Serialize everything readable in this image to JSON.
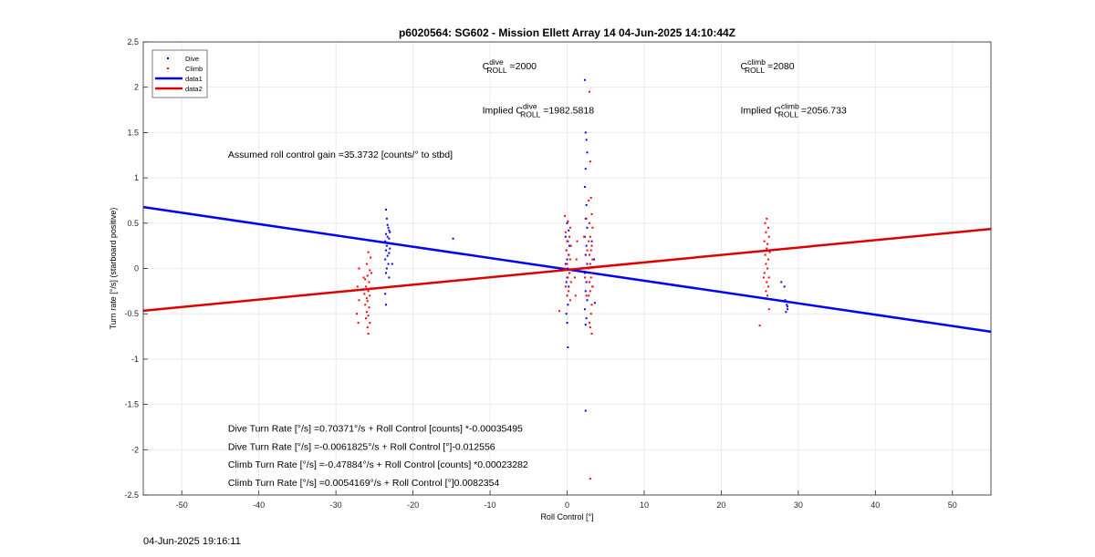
{
  "chart_data": {
    "type": "scatter",
    "title": "p6020564: SG602 - Mission Ellett Array 14 04-Jun-2025 14:10:44Z",
    "xlabel": "Roll Control [°]",
    "ylabel": "Turn rate [°/s] (starboard positive)",
    "xlim": [
      -55,
      55
    ],
    "ylim": [
      -2.5,
      2.5
    ],
    "xticks": [
      -50,
      -40,
      -30,
      -20,
      -10,
      0,
      10,
      20,
      30,
      40,
      50
    ],
    "yticks": [
      -2.5,
      -2,
      -1.5,
      -1,
      -0.5,
      0,
      0.5,
      1,
      1.5,
      2,
      2.5
    ],
    "grid": true,
    "legend_position": "top-left",
    "series": [
      {
        "name": "Dive",
        "kind": "points",
        "color": "#0000ff",
        "points": [
          [
            -23.5,
            0.65
          ],
          [
            -23.4,
            0.55
          ],
          [
            -23.3,
            0.48
          ],
          [
            -23.2,
            0.45
          ],
          [
            -23.1,
            0.42
          ],
          [
            -23.0,
            0.4
          ],
          [
            -23.5,
            0.38
          ],
          [
            -23.3,
            0.35
          ],
          [
            -23.1,
            0.33
          ],
          [
            -23.6,
            0.3
          ],
          [
            -23.2,
            0.28
          ],
          [
            -23.4,
            0.25
          ],
          [
            -23.0,
            0.22
          ],
          [
            -23.5,
            0.2
          ],
          [
            -23.1,
            0.17
          ],
          [
            -23.3,
            0.14
          ],
          [
            -23.6,
            0.1
          ],
          [
            -23.2,
            0.05
          ],
          [
            -22.7,
            0.05
          ],
          [
            -23.4,
            0.0
          ],
          [
            -23.5,
            -0.05
          ],
          [
            -23.1,
            -0.1
          ],
          [
            -23.6,
            -0.28
          ],
          [
            -23.5,
            -0.4
          ],
          [
            -14.8,
            0.33
          ],
          [
            0.0,
            0.5
          ],
          [
            0.2,
            0.42
          ],
          [
            -0.2,
            0.35
          ],
          [
            0.1,
            0.3
          ],
          [
            0.3,
            0.25
          ],
          [
            -0.1,
            0.2
          ],
          [
            0.2,
            0.15
          ],
          [
            0.0,
            0.1
          ],
          [
            -0.2,
            0.05
          ],
          [
            0.1,
            0.0
          ],
          [
            0.3,
            -0.05
          ],
          [
            0.0,
            -0.1
          ],
          [
            -0.1,
            -0.15
          ],
          [
            0.2,
            -0.2
          ],
          [
            0.0,
            -0.3
          ],
          [
            0.1,
            -0.4
          ],
          [
            -0.1,
            -0.5
          ],
          [
            0.0,
            -0.6
          ],
          [
            0.1,
            -0.87
          ],
          [
            2.3,
            2.08
          ],
          [
            2.4,
            1.5
          ],
          [
            2.5,
            1.42
          ],
          [
            2.6,
            1.28
          ],
          [
            2.4,
            1.1
          ],
          [
            2.3,
            0.9
          ],
          [
            2.5,
            0.7
          ],
          [
            2.4,
            0.55
          ],
          [
            2.6,
            0.45
          ],
          [
            2.3,
            0.35
          ],
          [
            2.5,
            0.25
          ],
          [
            2.4,
            0.15
          ],
          [
            2.6,
            0.05
          ],
          [
            2.3,
            -0.05
          ],
          [
            2.5,
            -0.15
          ],
          [
            2.4,
            -0.25
          ],
          [
            2.6,
            -0.35
          ],
          [
            2.3,
            -0.45
          ],
          [
            2.5,
            -0.55
          ],
          [
            2.4,
            -0.62
          ],
          [
            2.4,
            -1.57
          ],
          [
            3.2,
            0.3
          ],
          [
            3.5,
            0.1
          ],
          [
            3.3,
            -0.2
          ],
          [
            3.6,
            -0.38
          ],
          [
            27.8,
            -0.15
          ],
          [
            28.3,
            -0.35
          ],
          [
            28.5,
            -0.4
          ],
          [
            28.6,
            -0.45
          ],
          [
            28.4,
            -0.48
          ],
          [
            28.2,
            -0.2
          ],
          [
            28.6,
            -0.42
          ]
        ]
      },
      {
        "name": "Climb",
        "kind": "points",
        "color": "#ff0000",
        "points": [
          [
            -25.8,
            0.18
          ],
          [
            -25.5,
            0.12
          ],
          [
            -26.0,
            0.05
          ],
          [
            -25.6,
            -0.02
          ],
          [
            -25.9,
            -0.08
          ],
          [
            -26.2,
            -0.12
          ],
          [
            -25.7,
            -0.15
          ],
          [
            -26.1,
            -0.2
          ],
          [
            -25.5,
            -0.22
          ],
          [
            -25.8,
            -0.25
          ],
          [
            -26.3,
            -0.28
          ],
          [
            -25.6,
            -0.3
          ],
          [
            -26.0,
            -0.33
          ],
          [
            -25.9,
            -0.36
          ],
          [
            -26.2,
            -0.4
          ],
          [
            -25.7,
            -0.43
          ],
          [
            -26.0,
            -0.48
          ],
          [
            -25.8,
            -0.52
          ],
          [
            -26.1,
            -0.55
          ],
          [
            -25.6,
            -0.6
          ],
          [
            -25.9,
            -0.65
          ],
          [
            -25.8,
            -0.72
          ],
          [
            -26.4,
            -0.1
          ],
          [
            -25.4,
            -0.05
          ],
          [
            -27.0,
            0.0
          ],
          [
            -27.2,
            -0.2
          ],
          [
            -27.0,
            -0.35
          ],
          [
            -27.3,
            -0.5
          ],
          [
            -27.1,
            -0.6
          ],
          [
            -1.0,
            -0.47
          ],
          [
            -0.3,
            0.58
          ],
          [
            0.1,
            0.52
          ],
          [
            0.4,
            0.45
          ],
          [
            -0.2,
            0.4
          ],
          [
            0.3,
            0.35
          ],
          [
            0.0,
            0.3
          ],
          [
            0.5,
            0.25
          ],
          [
            -0.1,
            0.2
          ],
          [
            0.2,
            0.15
          ],
          [
            0.4,
            0.1
          ],
          [
            0.0,
            0.05
          ],
          [
            -0.3,
            0.0
          ],
          [
            0.3,
            -0.05
          ],
          [
            0.1,
            -0.1
          ],
          [
            0.5,
            -0.15
          ],
          [
            -0.2,
            -0.2
          ],
          [
            0.2,
            -0.25
          ],
          [
            0.0,
            -0.3
          ],
          [
            0.4,
            -0.35
          ],
          [
            1.2,
            0.1
          ],
          [
            1.0,
            -0.1
          ],
          [
            1.3,
            0.3
          ],
          [
            1.1,
            -0.3
          ],
          [
            2.5,
            0.55
          ],
          [
            2.2,
            0.35
          ],
          [
            2.6,
            0.2
          ],
          [
            2.3,
            -0.1
          ],
          [
            2.5,
            -0.3
          ],
          [
            2.9,
            1.95
          ],
          [
            3.0,
            1.18
          ],
          [
            3.1,
            0.78
          ],
          [
            2.8,
            0.75
          ],
          [
            3.2,
            0.6
          ],
          [
            2.9,
            0.5
          ],
          [
            3.3,
            0.45
          ],
          [
            3.0,
            0.35
          ],
          [
            2.8,
            0.3
          ],
          [
            3.2,
            0.25
          ],
          [
            3.1,
            0.2
          ],
          [
            2.9,
            0.15
          ],
          [
            3.3,
            0.1
          ],
          [
            3.0,
            0.05
          ],
          [
            2.8,
            0.0
          ],
          [
            3.2,
            -0.05
          ],
          [
            3.1,
            -0.1
          ],
          [
            2.9,
            -0.15
          ],
          [
            3.3,
            -0.2
          ],
          [
            3.0,
            -0.25
          ],
          [
            2.8,
            -0.3
          ],
          [
            3.2,
            -0.4
          ],
          [
            3.1,
            -0.5
          ],
          [
            2.9,
            -0.6
          ],
          [
            3.0,
            -0.65
          ],
          [
            3.2,
            -0.72
          ],
          [
            3.0,
            -2.32
          ],
          [
            25.9,
            0.55
          ],
          [
            25.7,
            0.5
          ],
          [
            26.1,
            0.45
          ],
          [
            25.8,
            0.4
          ],
          [
            26.2,
            0.35
          ],
          [
            25.6,
            0.3
          ],
          [
            26.0,
            0.27
          ],
          [
            25.9,
            0.22
          ],
          [
            26.3,
            0.18
          ],
          [
            25.7,
            0.15
          ],
          [
            26.1,
            0.1
          ],
          [
            25.8,
            0.05
          ],
          [
            26.0,
            0.0
          ],
          [
            25.6,
            -0.05
          ],
          [
            26.2,
            -0.1
          ],
          [
            25.9,
            -0.15
          ],
          [
            26.1,
            -0.2
          ],
          [
            25.8,
            -0.25
          ],
          [
            26.0,
            -0.3
          ],
          [
            26.2,
            -0.45
          ],
          [
            25.0,
            -0.63
          ],
          [
            25.5,
            -0.1
          ]
        ]
      },
      {
        "name": "data1",
        "kind": "line",
        "color": "#0000ff",
        "slope": -0.0125,
        "intercept": -0.01
      },
      {
        "name": "data2",
        "kind": "line",
        "color": "#dd0000",
        "slope": 0.0082,
        "intercept": -0.015
      }
    ],
    "annotations": [
      {
        "id": "c-dive",
        "text": "C",
        "sup": "dive",
        "sub": "ROLL",
        "tail": " =2000",
        "x": -11,
        "y": 2.2
      },
      {
        "id": "c-climb",
        "text": "C",
        "sup": "climb",
        "sub": "ROLL",
        "tail": " =2080",
        "x": 22.5,
        "y": 2.2
      },
      {
        "id": "implied-dive",
        "text": "Implied C",
        "sup": "dive",
        "sub": "ROLL",
        "tail": " =1982.5818",
        "x": -11,
        "y": 1.71
      },
      {
        "id": "implied-climb",
        "text": "Implied C",
        "sup": "climb",
        "sub": "ROLL",
        "tail": " =2056.733",
        "x": 22.5,
        "y": 1.71
      },
      {
        "id": "gain",
        "text": "Assumed roll control gain =35.3732 [counts/° to stbd]",
        "x": -44,
        "y": 1.22
      },
      {
        "id": "eq1",
        "text": "Dive Turn Rate [°/s] =0.70371°/s + Roll Control [counts] *-0.00035495",
        "x": -44,
        "y": -1.8
      },
      {
        "id": "eq2",
        "text": "Dive Turn Rate [°/s] =-0.0061825°/s + Roll Control [°]-0.012556",
        "x": -44,
        "y": -2.0
      },
      {
        "id": "eq3",
        "text": "Climb Turn Rate [°/s] =-0.47884°/s + Roll Control [counts] *0.00023282",
        "x": -44,
        "y": -2.2
      },
      {
        "id": "eq4",
        "text": "Climb Turn Rate [°/s] =0.0054169°/s + Roll Control [°]0.0082354",
        "x": -44,
        "y": -2.4
      }
    ]
  },
  "footer": {
    "timestamp": "04-Jun-2025 19:16:11"
  }
}
